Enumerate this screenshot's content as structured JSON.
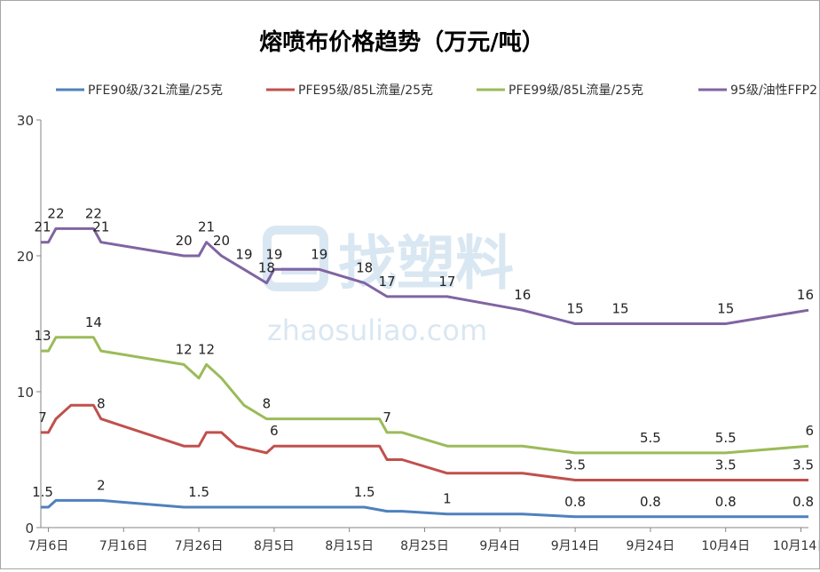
{
  "chart_data": {
    "type": "line",
    "title": "熔喷布价格趋势（万元/吨）",
    "xlabel": "",
    "ylabel": "",
    "ylim": [
      0,
      30
    ],
    "y_ticks": [
      0,
      10,
      20,
      30
    ],
    "x_range": [
      "2020-07-05",
      "2020-10-15"
    ],
    "x_ticks": [
      {
        "date": "2020-07-06",
        "label": "7月6日"
      },
      {
        "date": "2020-07-16",
        "label": "7月16日"
      },
      {
        "date": "2020-07-26",
        "label": "7月26日"
      },
      {
        "date": "2020-08-05",
        "label": "8月5日"
      },
      {
        "date": "2020-08-15",
        "label": "8月15日"
      },
      {
        "date": "2020-08-25",
        "label": "8月25日"
      },
      {
        "date": "2020-09-04",
        "label": "9月4日"
      },
      {
        "date": "2020-09-14",
        "label": "9月14日"
      },
      {
        "date": "2020-09-24",
        "label": "9月24日"
      },
      {
        "date": "2020-10-04",
        "label": "10月4日"
      },
      {
        "date": "2020-10-14",
        "label": "10月14日"
      }
    ],
    "grid": false,
    "legend_position": "top",
    "watermark": "找塑料 zhaosuliao.com",
    "series": [
      {
        "name": "PFE90级/32L流量/25克",
        "color": "#4f81bd",
        "points": [
          {
            "x": "2020-07-05",
            "y": 1.5,
            "label": "1.5"
          },
          {
            "x": "2020-07-06",
            "y": 1.5
          },
          {
            "x": "2020-07-07",
            "y": 2
          },
          {
            "x": "2020-07-13",
            "y": 2,
            "label": "2"
          },
          {
            "x": "2020-07-24",
            "y": 1.5
          },
          {
            "x": "2020-07-26",
            "y": 1.5,
            "label": "1.5"
          },
          {
            "x": "2020-08-03",
            "y": 1.5
          },
          {
            "x": "2020-08-17",
            "y": 1.5,
            "label": "1.5"
          },
          {
            "x": "2020-08-20",
            "y": 1.2
          },
          {
            "x": "2020-08-22",
            "y": 1.2
          },
          {
            "x": "2020-08-28",
            "y": 1,
            "label": "1"
          },
          {
            "x": "2020-09-07",
            "y": 1
          },
          {
            "x": "2020-09-14",
            "y": 0.8,
            "label": "0.8"
          },
          {
            "x": "2020-09-24",
            "y": 0.8,
            "label": "0.8"
          },
          {
            "x": "2020-10-04",
            "y": 0.8,
            "label": "0.8"
          },
          {
            "x": "2020-10-15",
            "y": 0.8,
            "label": "0.8"
          }
        ]
      },
      {
        "name": "PFE95级/85L流量/25克",
        "color": "#c0504d",
        "points": [
          {
            "x": "2020-07-05",
            "y": 7,
            "label": "7"
          },
          {
            "x": "2020-07-06",
            "y": 7
          },
          {
            "x": "2020-07-07",
            "y": 8
          },
          {
            "x": "2020-07-09",
            "y": 9
          },
          {
            "x": "2020-07-12",
            "y": 9
          },
          {
            "x": "2020-07-13",
            "y": 8,
            "label": "8"
          },
          {
            "x": "2020-07-24",
            "y": 6
          },
          {
            "x": "2020-07-26",
            "y": 6
          },
          {
            "x": "2020-07-27",
            "y": 7
          },
          {
            "x": "2020-07-29",
            "y": 7
          },
          {
            "x": "2020-07-31",
            "y": 6
          },
          {
            "x": "2020-08-04",
            "y": 5.5
          },
          {
            "x": "2020-08-05",
            "y": 6,
            "label": "6"
          },
          {
            "x": "2020-08-19",
            "y": 6
          },
          {
            "x": "2020-08-20",
            "y": 5
          },
          {
            "x": "2020-08-22",
            "y": 5
          },
          {
            "x": "2020-08-28",
            "y": 4
          },
          {
            "x": "2020-09-07",
            "y": 4
          },
          {
            "x": "2020-09-14",
            "y": 3.5,
            "label": "3.5"
          },
          {
            "x": "2020-10-04",
            "y": 3.5,
            "label": "3.5"
          },
          {
            "x": "2020-10-15",
            "y": 3.5,
            "label": "3.5"
          }
        ]
      },
      {
        "name": "PFE99级/85L流量/25克",
        "color": "#9bbb59",
        "points": [
          {
            "x": "2020-07-05",
            "y": 13,
            "label": "13"
          },
          {
            "x": "2020-07-06",
            "y": 13
          },
          {
            "x": "2020-07-07",
            "y": 14
          },
          {
            "x": "2020-07-12",
            "y": 14,
            "label": "14"
          },
          {
            "x": "2020-07-13",
            "y": 13
          },
          {
            "x": "2020-07-24",
            "y": 12,
            "label": "12"
          },
          {
            "x": "2020-07-26",
            "y": 11
          },
          {
            "x": "2020-07-27",
            "y": 12,
            "label": "12"
          },
          {
            "x": "2020-07-29",
            "y": 11
          },
          {
            "x": "2020-08-01",
            "y": 9
          },
          {
            "x": "2020-08-04",
            "y": 8,
            "label": "8"
          },
          {
            "x": "2020-08-19",
            "y": 8
          },
          {
            "x": "2020-08-20",
            "y": 7,
            "label": "7"
          },
          {
            "x": "2020-08-22",
            "y": 7
          },
          {
            "x": "2020-08-28",
            "y": 6
          },
          {
            "x": "2020-09-07",
            "y": 6
          },
          {
            "x": "2020-09-14",
            "y": 5.5
          },
          {
            "x": "2020-09-24",
            "y": 5.5,
            "label": "5.5"
          },
          {
            "x": "2020-10-04",
            "y": 5.5,
            "label": "5.5"
          },
          {
            "x": "2020-10-15",
            "y": 6,
            "label": "6"
          }
        ]
      },
      {
        "name": "95级/油性FFP2",
        "color": "#8064a2",
        "points": [
          {
            "x": "2020-07-05",
            "y": 21,
            "label": "21"
          },
          {
            "x": "2020-07-06",
            "y": 21
          },
          {
            "x": "2020-07-07",
            "y": 22,
            "label": "22"
          },
          {
            "x": "2020-07-12",
            "y": 22,
            "label": "22"
          },
          {
            "x": "2020-07-13",
            "y": 21,
            "label": "21"
          },
          {
            "x": "2020-07-24",
            "y": 20,
            "label": "20"
          },
          {
            "x": "2020-07-26",
            "y": 20
          },
          {
            "x": "2020-07-27",
            "y": 21,
            "label": "21"
          },
          {
            "x": "2020-07-29",
            "y": 20,
            "label": "20"
          },
          {
            "x": "2020-08-01",
            "y": 19,
            "label": "19"
          },
          {
            "x": "2020-08-04",
            "y": 18,
            "label": "18"
          },
          {
            "x": "2020-08-05",
            "y": 19,
            "label": "19"
          },
          {
            "x": "2020-08-11",
            "y": 19,
            "label": "19"
          },
          {
            "x": "2020-08-17",
            "y": 18,
            "label": "18"
          },
          {
            "x": "2020-08-20",
            "y": 17,
            "label": "17"
          },
          {
            "x": "2020-08-28",
            "y": 17,
            "label": "17"
          },
          {
            "x": "2020-09-07",
            "y": 16,
            "label": "16"
          },
          {
            "x": "2020-09-14",
            "y": 15,
            "label": "15"
          },
          {
            "x": "2020-09-20",
            "y": 15,
            "label": "15"
          },
          {
            "x": "2020-10-04",
            "y": 15,
            "label": "15"
          },
          {
            "x": "2020-10-15",
            "y": 16,
            "label": "16"
          }
        ]
      }
    ]
  }
}
